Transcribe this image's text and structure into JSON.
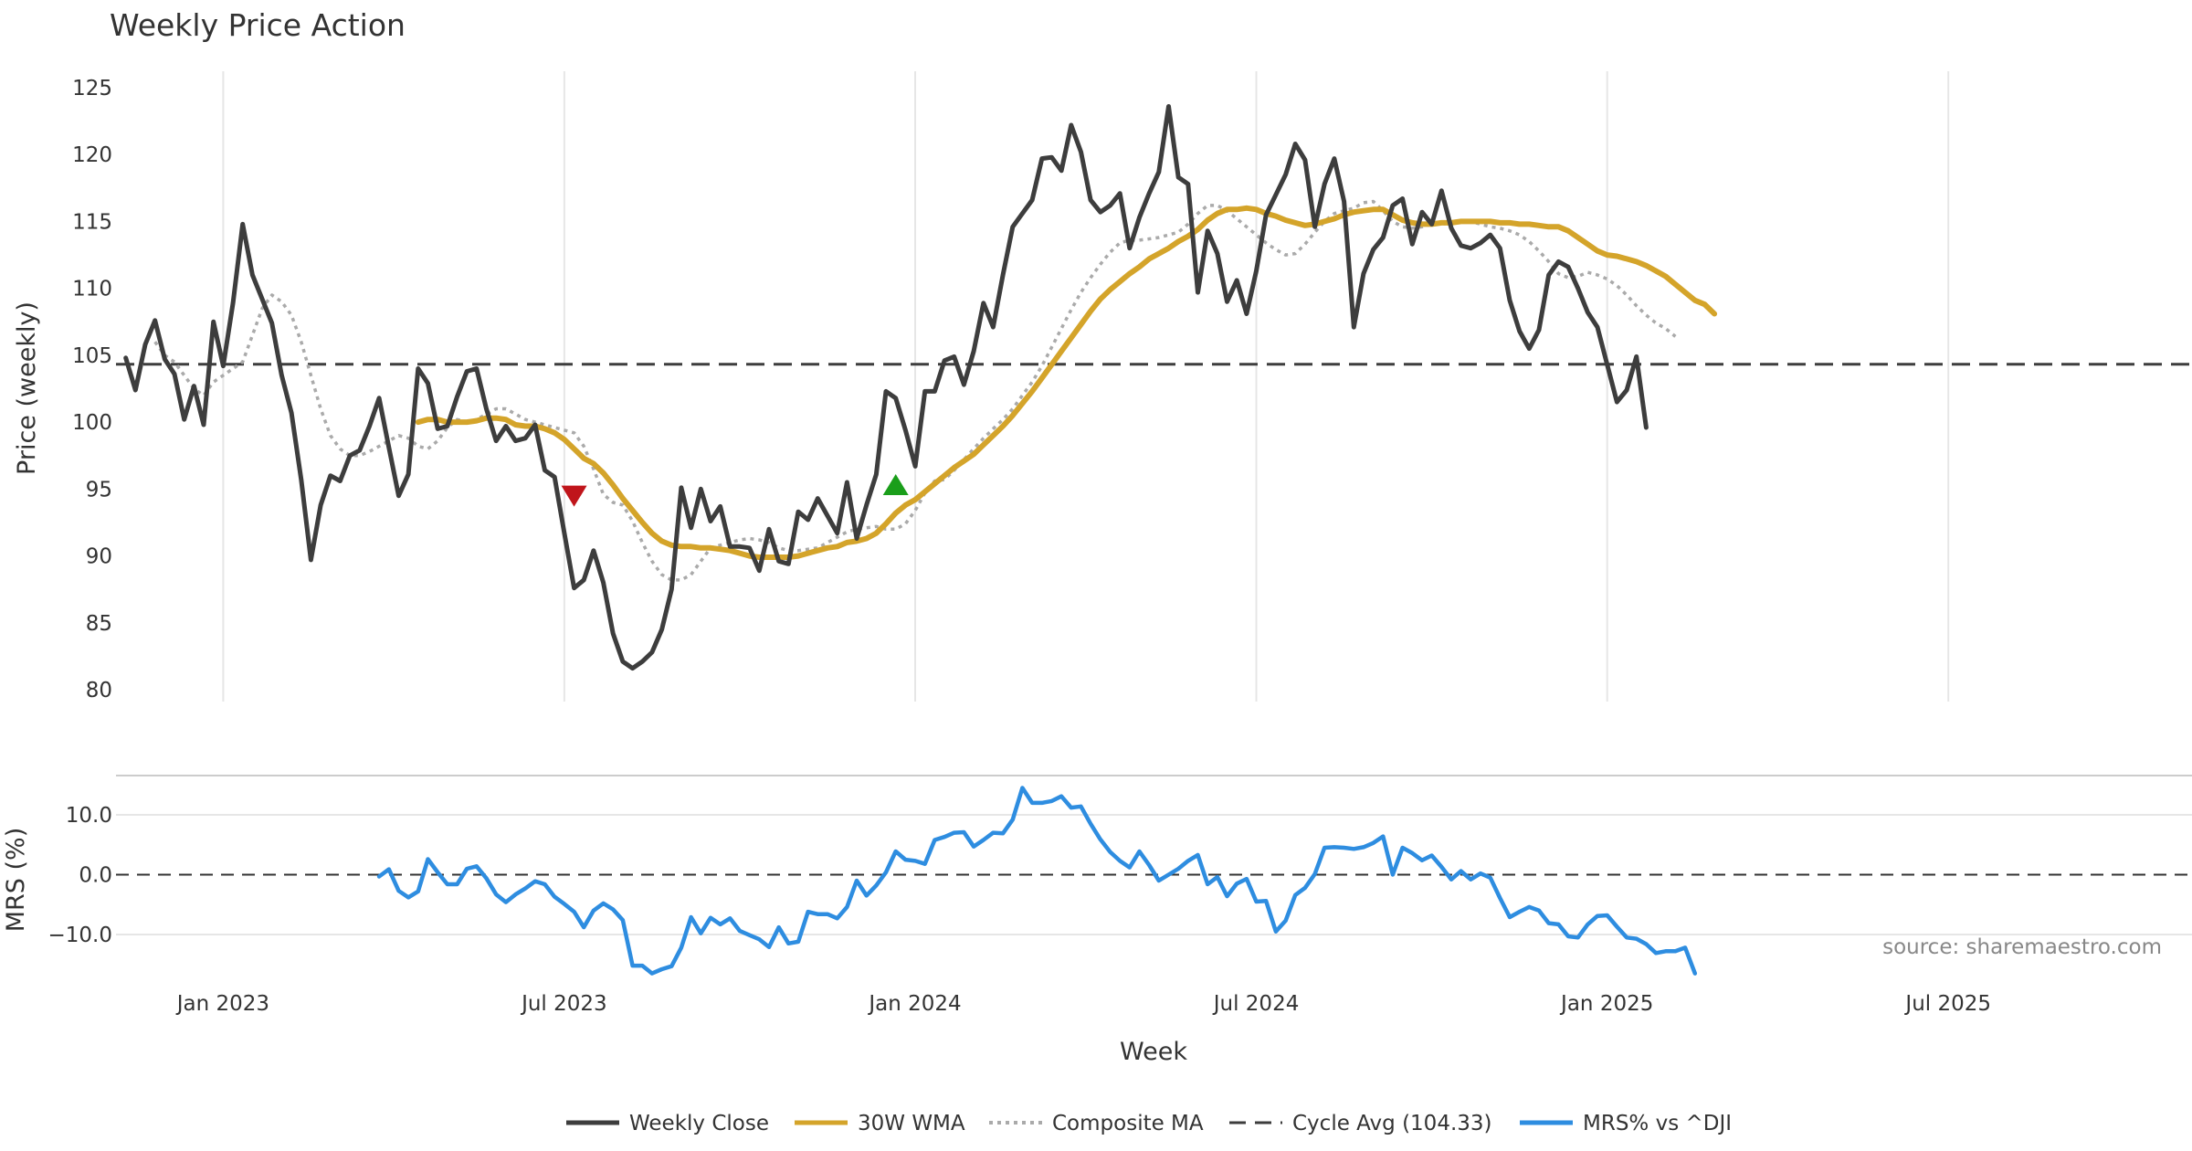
{
  "chart_data": {
    "type": "line",
    "title": "Weekly Price Action",
    "xlabel": "Week",
    "x_ticks": [
      "Jan 2023",
      "Jul 2023",
      "Jan 2024",
      "Jul 2024",
      "Jan 2025",
      "Jul 2025"
    ],
    "x_tick_weeks": [
      10,
      45,
      81,
      116,
      152,
      187
    ],
    "x_range": [
      -1,
      212
    ],
    "source": "source: sharemaestro.com",
    "price_panel": {
      "ylabel": "Price (weekly)",
      "ylim": [
        80,
        125
      ],
      "yticks": [
        80,
        85,
        90,
        95,
        100,
        105,
        110,
        115,
        120,
        125
      ],
      "cycle_avg": 104.33,
      "series": [
        {
          "name": "Weekly Close",
          "color": "#3d3d3d",
          "style": "solid",
          "start_week": 0,
          "values": [
            104.8,
            102.4,
            105.8,
            107.6,
            104.7,
            103.6,
            100.2,
            102.7,
            99.8,
            107.5,
            104.2,
            108.9,
            114.8,
            111.0,
            109.2,
            107.4,
            103.5,
            100.7,
            95.7,
            89.7,
            93.8,
            96.0,
            95.6,
            97.5,
            97.9,
            99.7,
            101.8,
            98.1,
            94.5,
            96.1,
            104.0,
            102.9,
            99.5,
            99.7,
            101.9,
            103.8,
            104.0,
            101.0,
            98.6,
            99.7,
            98.6,
            98.8,
            99.8,
            96.4,
            95.9,
            91.7,
            87.6,
            88.2,
            90.4,
            88.0,
            84.2,
            82.1,
            81.6,
            82.1,
            82.8,
            84.5,
            87.5,
            95.1,
            92.1,
            95.0,
            92.6,
            93.7,
            90.7,
            90.7,
            90.6,
            88.9,
            92.0,
            89.6,
            89.4,
            93.3,
            92.7,
            94.3,
            93.0,
            91.7,
            95.5,
            91.3,
            93.8,
            96.1,
            102.3,
            101.8,
            99.4,
            96.7,
            102.3,
            102.3,
            104.6,
            104.9,
            102.8,
            105.3,
            108.9,
            107.1,
            111.0,
            114.6,
            115.6,
            116.6,
            119.7,
            119.8,
            118.8,
            122.2,
            120.2,
            116.6,
            115.7,
            116.2,
            117.1,
            113.0,
            115.3,
            117.1,
            118.7,
            123.6,
            118.3,
            117.8,
            109.7,
            114.3,
            112.6,
            109.0,
            110.6,
            108.1,
            111.3,
            115.5,
            117.0,
            118.5,
            120.8,
            119.6,
            114.6,
            117.8,
            119.7,
            116.5,
            107.1,
            111.1,
            112.9,
            113.8,
            116.2,
            116.7,
            113.3,
            115.7,
            114.8,
            117.3,
            114.5,
            113.2,
            113.0,
            113.4,
            114.0,
            113.0,
            109.1,
            106.8,
            105.5,
            106.9,
            111.0,
            112.0,
            111.6,
            110.0,
            108.2,
            107.1,
            104.3,
            101.5,
            102.4,
            104.9,
            99.6
          ]
        },
        {
          "name": "30W WMA",
          "color": "#d4a42a",
          "style": "solid",
          "start_week": 30,
          "values": [
            100.0,
            100.2,
            100.2,
            100.0,
            100.0,
            100.0,
            100.1,
            100.3,
            100.3,
            100.2,
            99.8,
            99.7,
            99.7,
            99.5,
            99.2,
            98.7,
            98.0,
            97.3,
            96.9,
            96.2,
            95.3,
            94.3,
            93.4,
            92.5,
            91.7,
            91.1,
            90.8,
            90.7,
            90.7,
            90.6,
            90.6,
            90.5,
            90.4,
            90.2,
            90.0,
            89.9,
            89.9,
            89.9,
            89.9,
            90.0,
            90.2,
            90.4,
            90.6,
            90.7,
            91.0,
            91.1,
            91.3,
            91.7,
            92.4,
            93.2,
            93.8,
            94.2,
            94.8,
            95.4,
            96.0,
            96.6,
            97.1,
            97.6,
            98.3,
            99.0,
            99.7,
            100.5,
            101.4,
            102.3,
            103.3,
            104.3,
            105.3,
            106.3,
            107.3,
            108.3,
            109.2,
            109.9,
            110.5,
            111.1,
            111.6,
            112.2,
            112.6,
            113.0,
            113.5,
            113.9,
            114.4,
            115.1,
            115.6,
            115.9,
            115.9,
            116.0,
            115.9,
            115.6,
            115.4,
            115.1,
            114.9,
            114.7,
            114.8,
            115.0,
            115.2,
            115.5,
            115.7,
            115.8,
            115.9,
            115.9,
            115.5,
            115.1,
            114.9,
            114.8,
            114.8,
            114.9,
            114.9,
            115.0,
            115.0,
            115.0,
            115.0,
            114.9,
            114.9,
            114.8,
            114.8,
            114.7,
            114.6,
            114.6,
            114.3,
            113.8,
            113.3,
            112.8,
            112.5,
            112.4,
            112.2,
            112.0,
            111.7,
            111.3,
            110.9,
            110.3,
            109.7,
            109.1,
            108.8,
            108.1
          ]
        },
        {
          "name": "Composite MA",
          "color": "#aaaaaa",
          "style": "dotted",
          "start_week": 3,
          "values": [
            106.0,
            105.0,
            104.5,
            103.5,
            102.5,
            102.0,
            103.0,
            103.5,
            104.0,
            104.5,
            106.5,
            108.5,
            109.5,
            109.0,
            108.0,
            106.0,
            103.5,
            101.0,
            99.0,
            98.0,
            97.5,
            97.5,
            97.8,
            98.2,
            98.6,
            99.0,
            98.8,
            98.2,
            98.0,
            98.6,
            99.6,
            100.2,
            100.0,
            100.2,
            100.6,
            101.0,
            101.0,
            100.6,
            100.2,
            100.0,
            99.8,
            99.6,
            99.4,
            99.2,
            98.2,
            96.5,
            94.6,
            94.0,
            93.8,
            92.6,
            91.0,
            89.6,
            88.6,
            88.2,
            88.2,
            88.6,
            89.6,
            90.6,
            90.8,
            91.0,
            91.2,
            91.3,
            91.2,
            91.0,
            90.6,
            90.4,
            90.4,
            90.5,
            90.6,
            91.0,
            91.4,
            91.8,
            92.0,
            92.1,
            92.2,
            92.0,
            92.0,
            92.4,
            93.4,
            94.7,
            95.6,
            95.7,
            96.4,
            97.2,
            98.0,
            98.8,
            99.5,
            100.2,
            101.0,
            102.0,
            103.0,
            104.2,
            105.6,
            107.0,
            108.4,
            109.7,
            110.8,
            111.8,
            112.7,
            113.4,
            113.6,
            113.6,
            113.7,
            113.8,
            114.0,
            114.2,
            114.8,
            115.6,
            116.2,
            116.2,
            115.8,
            115.2,
            114.6,
            114.0,
            113.4,
            112.9,
            112.5,
            112.6,
            113.3,
            114.2,
            115.0,
            115.6,
            115.8,
            116.0,
            116.4,
            116.5,
            115.8,
            115.0,
            114.6,
            114.5,
            114.6,
            114.8,
            114.8,
            114.9,
            115.0,
            115.0,
            114.8,
            114.6,
            114.5,
            114.3,
            114.0,
            113.5,
            112.8,
            112.0,
            111.1,
            110.8,
            110.9,
            111.2,
            111.0,
            110.7,
            110.2,
            109.5,
            108.7,
            108.0,
            107.4,
            107.0,
            106.4
          ]
        }
      ],
      "signals": [
        {
          "type": "sell",
          "marker": "down-triangle",
          "week": 46,
          "value": 94.5,
          "color": "#c0151b"
        },
        {
          "type": "buy",
          "marker": "up-triangle",
          "week": 79,
          "value": 95.3,
          "color": "#1a9e1a"
        }
      ]
    },
    "mrs_panel": {
      "ylabel": "MRS (%)",
      "ylim": [
        -17,
        16
      ],
      "yticks": [
        -10.0,
        0.0,
        10.0
      ],
      "ytick_labels": [
        "−10.0",
        "0.0",
        "10.0"
      ],
      "zero_line": 0.0,
      "series": [
        {
          "name": "MRS% vs ^DJI",
          "color": "#2e8de0",
          "style": "solid",
          "start_week": 26,
          "values": [
            -0.3,
            0.9,
            -2.7,
            -3.8,
            -2.8,
            2.6,
            0.4,
            -1.6,
            -1.6,
            1.0,
            1.4,
            -0.6,
            -3.3,
            -4.6,
            -3.3,
            -2.3,
            -1.1,
            -1.6,
            -3.7,
            -4.9,
            -6.2,
            -8.8,
            -6.0,
            -4.8,
            -5.8,
            -7.6,
            -15.2,
            -15.2,
            -16.5,
            -15.8,
            -15.3,
            -12.2,
            -7.1,
            -9.8,
            -7.2,
            -8.3,
            -7.3,
            -9.4,
            -10.1,
            -10.8,
            -12.1,
            -8.8,
            -11.5,
            -11.2,
            -6.2,
            -6.6,
            -6.6,
            -7.3,
            -5.4,
            -1.0,
            -3.5,
            -1.8,
            0.4,
            3.9,
            2.5,
            2.3,
            1.8,
            5.8,
            6.3,
            7.0,
            7.1,
            4.7,
            5.8,
            7.0,
            6.9,
            9.2,
            14.5,
            12.0,
            12.0,
            12.3,
            13.1,
            11.2,
            11.4,
            8.5,
            5.9,
            3.8,
            2.3,
            1.2,
            3.9,
            1.6,
            -1.0,
            0.0,
            1.0,
            2.3,
            3.3,
            -1.6,
            -0.4,
            -3.6,
            -1.5,
            -0.7,
            -4.5,
            -4.4,
            -9.5,
            -7.7,
            -3.4,
            -2.2,
            0.1,
            4.5,
            4.6,
            4.5,
            4.3,
            4.6,
            5.3,
            6.4,
            0.0,
            4.5,
            3.6,
            2.4,
            3.2,
            1.3,
            -0.8,
            0.6,
            -0.8,
            0.2,
            -0.5,
            -3.9,
            -7.1,
            -6.2,
            -5.4,
            -6.0,
            -8.1,
            -8.3,
            -10.3,
            -10.5,
            -8.3,
            -6.9,
            -6.8,
            -8.7,
            -10.5,
            -10.7,
            -11.6,
            -13.1,
            -12.8,
            -12.8,
            -12.2,
            -16.5
          ]
        }
      ]
    },
    "legend": {
      "placement": "bottom-center",
      "entries": [
        {
          "label": "Weekly Close",
          "color": "#3d3d3d",
          "style": "solid"
        },
        {
          "label": "30W WMA",
          "color": "#d4a42a",
          "style": "solid"
        },
        {
          "label": "Composite MA",
          "color": "#aaaaaa",
          "style": "dotted"
        },
        {
          "label": "Cycle Avg (104.33)",
          "color": "#3d3d3d",
          "style": "dashed"
        },
        {
          "label": "MRS% vs ^DJI",
          "color": "#2e8de0",
          "style": "solid"
        }
      ]
    }
  }
}
